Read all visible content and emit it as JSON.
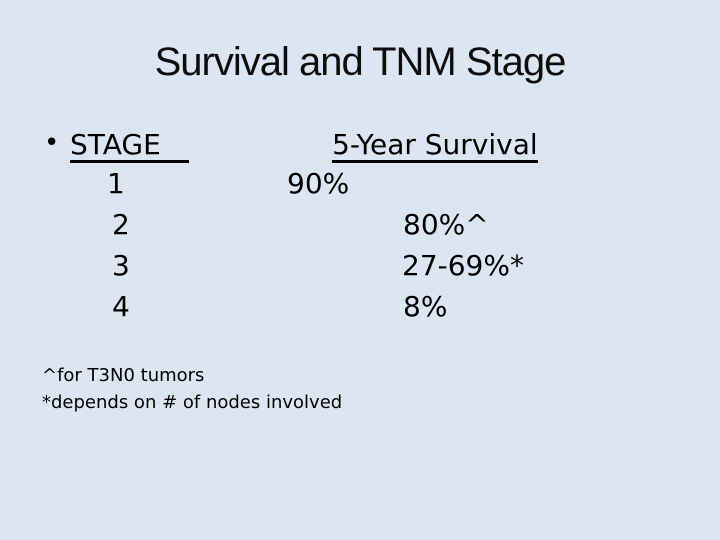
{
  "slide": {
    "colors": {
      "background": "#dce6f2",
      "text": "#000000"
    },
    "title": "Survival and TNM Stage",
    "table": {
      "bullet_glyph": "•",
      "stage_header": "STAGE",
      "survival_header": "5-Year Survival",
      "rows": [
        {
          "stage": "1",
          "survival": "90%"
        },
        {
          "stage": "2",
          "survival": "80%^"
        },
        {
          "stage": "3",
          "survival": "27-69%*"
        },
        {
          "stage": "4",
          "survival": "8%"
        }
      ]
    },
    "footnotes": [
      "^for T3N0 tumors",
      "*depends on # of nodes involved"
    ]
  }
}
